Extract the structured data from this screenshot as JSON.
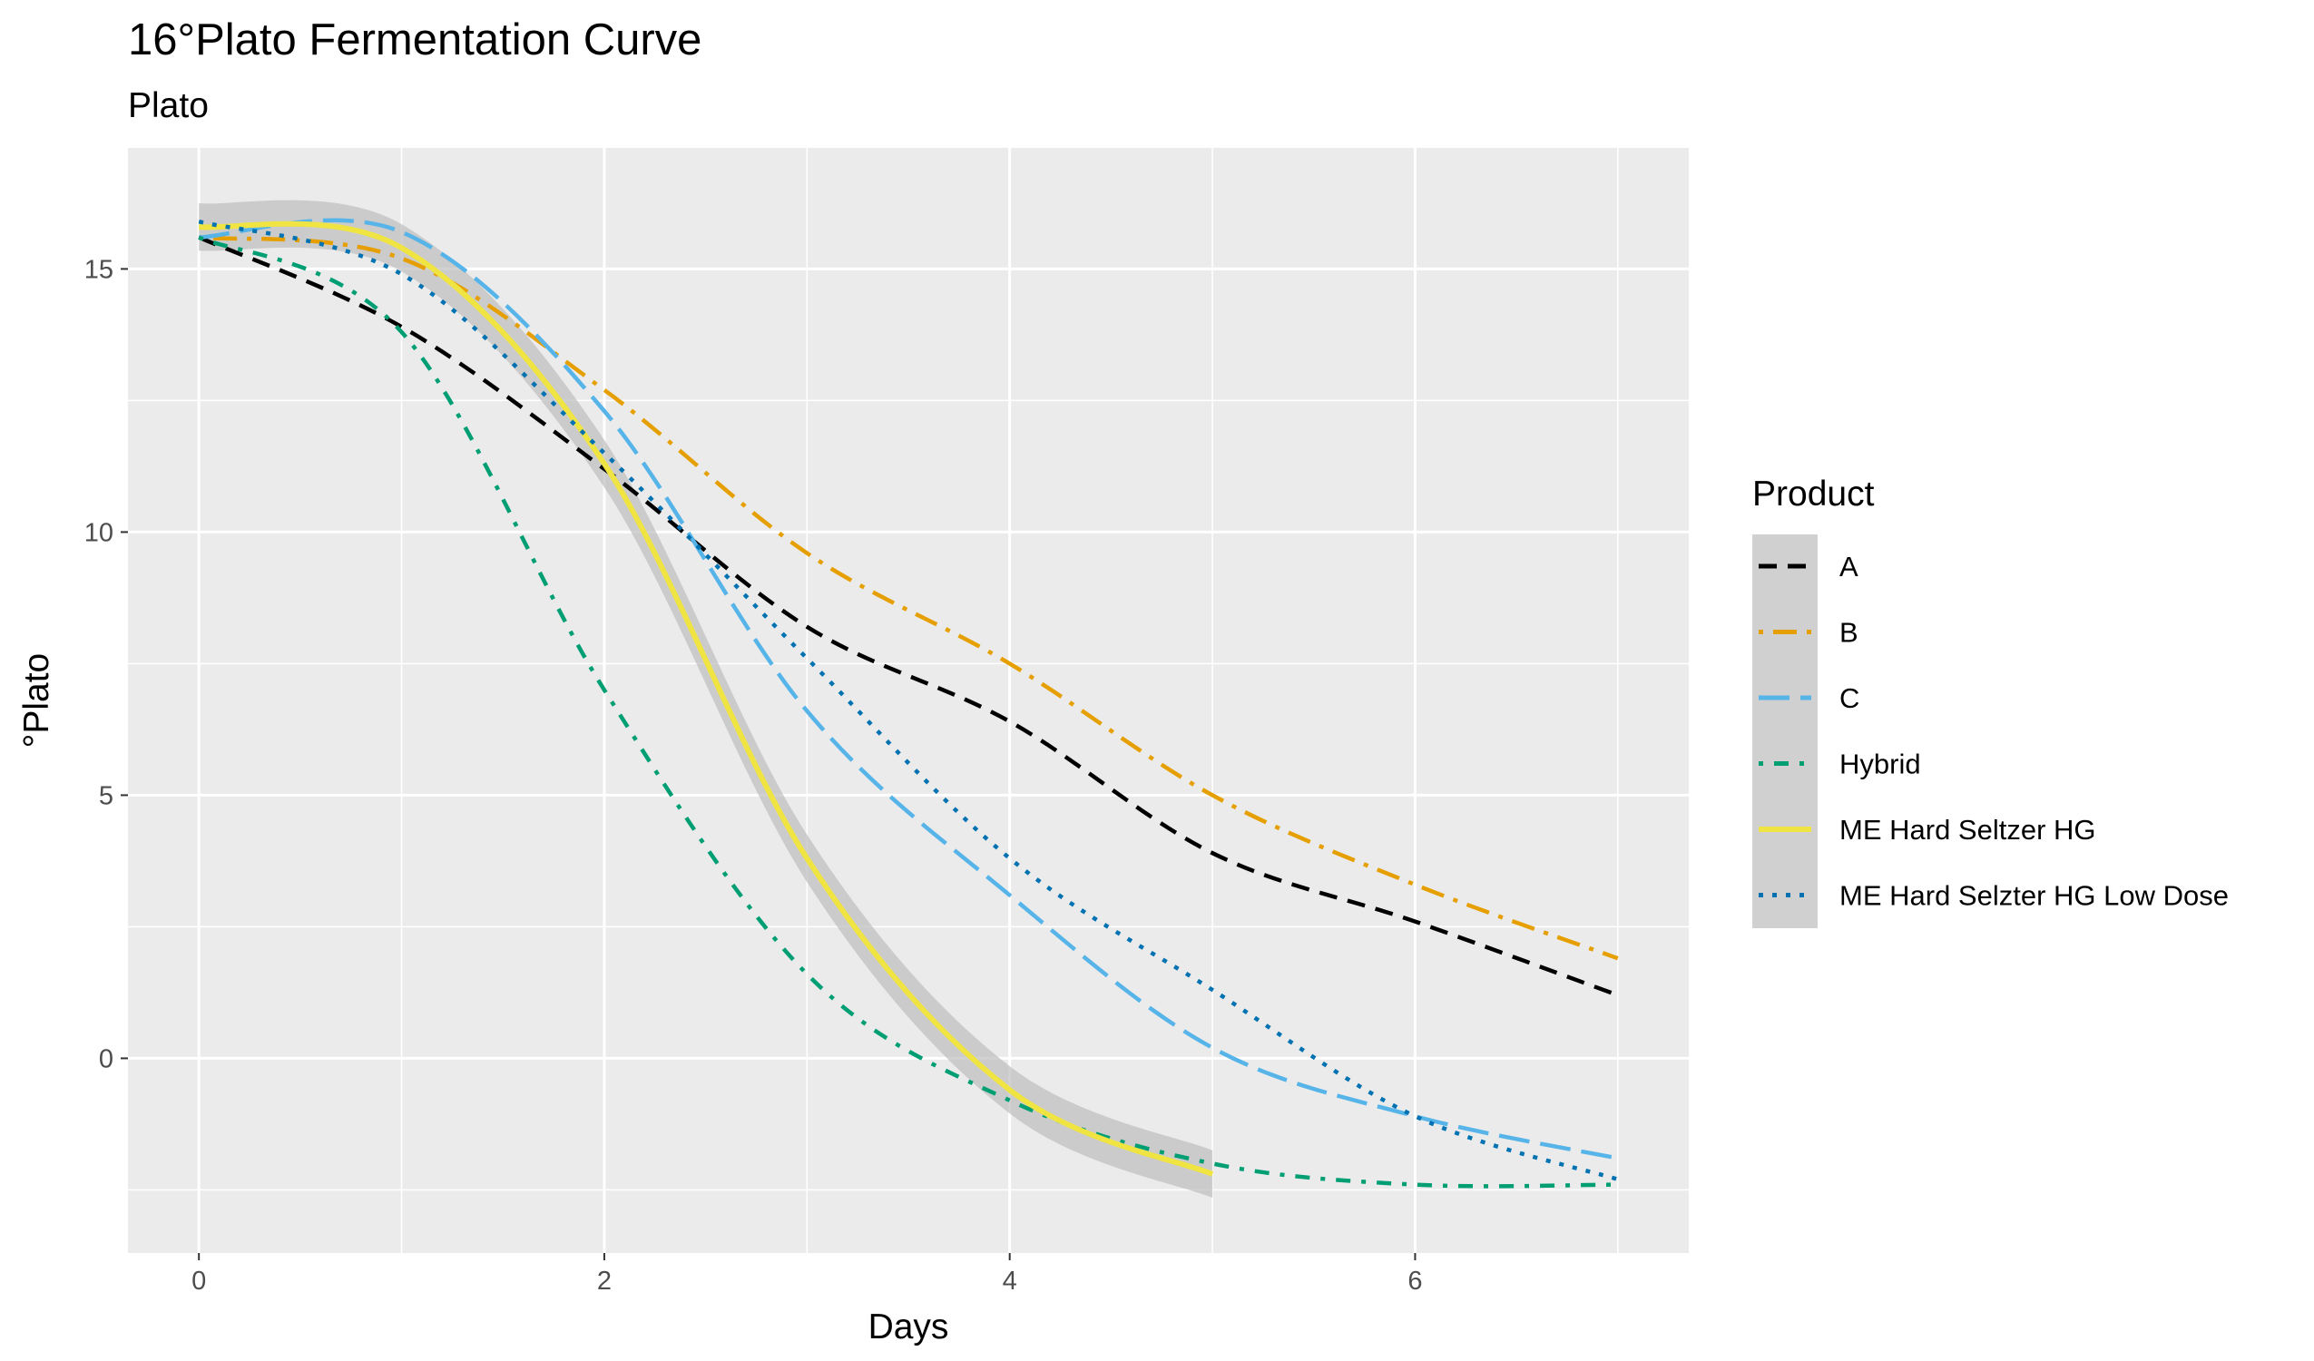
{
  "chart_data": {
    "type": "line",
    "title": "16°Plato Fermentation Curve",
    "subtitle": "Plato",
    "xlabel": "Days",
    "ylabel": "°Plato",
    "xlim": [
      -0.35,
      7.35
    ],
    "ylim": [
      -3.7,
      17.3
    ],
    "x_ticks": [
      0,
      2,
      4,
      6
    ],
    "y_ticks": [
      0,
      5,
      10,
      15
    ],
    "x_tick_labels": [
      "0",
      "2",
      "4",
      "6"
    ],
    "y_tick_labels": [
      "0",
      "5",
      "10",
      "15"
    ],
    "grid": true,
    "legend": {
      "title": "Product",
      "position": "right"
    },
    "series": [
      {
        "name": "A",
        "color": "#000000",
        "dash": "dashed",
        "x": [
          0,
          1,
          2,
          3,
          4,
          5,
          6,
          7
        ],
        "y": [
          15.6,
          13.9,
          11.2,
          8.2,
          6.4,
          3.9,
          2.6,
          1.2
        ]
      },
      {
        "name": "B",
        "color": "#E69F00",
        "dash": "dotdash",
        "x": [
          0,
          1,
          2,
          3,
          4,
          5,
          6,
          7
        ],
        "y": [
          15.6,
          15.2,
          12.7,
          9.6,
          7.5,
          5.0,
          3.3,
          1.9
        ]
      },
      {
        "name": "C",
        "color": "#56B4E9",
        "dash": "longdash",
        "x": [
          0,
          1,
          2,
          3,
          4,
          5,
          6,
          7
        ],
        "y": [
          15.6,
          15.7,
          12.3,
          6.6,
          3.1,
          0.2,
          -1.1,
          -1.9
        ]
      },
      {
        "name": "Hybrid",
        "color": "#009E73",
        "dash": "twodash",
        "x": [
          0,
          1,
          2,
          3,
          4,
          5,
          6,
          7
        ],
        "y": [
          15.6,
          13.8,
          7.0,
          1.6,
          -0.8,
          -2.0,
          -2.4,
          -2.4
        ]
      },
      {
        "name": "ME Hard Seltzer HG",
        "color": "#F0E442",
        "dash": "solid",
        "x": [
          0,
          1,
          2,
          3,
          4,
          5
        ],
        "y": [
          15.8,
          15.4,
          11.3,
          3.8,
          -0.6,
          -2.2
        ]
      },
      {
        "name": "ME Hard Selzter HG Low Dose",
        "color": "#0072B2",
        "dash": "dotted",
        "x": [
          0,
          1,
          2,
          3,
          4,
          5,
          6,
          7
        ],
        "y": [
          15.9,
          14.9,
          11.5,
          7.6,
          3.8,
          1.3,
          -1.1,
          -2.3
        ]
      }
    ]
  }
}
